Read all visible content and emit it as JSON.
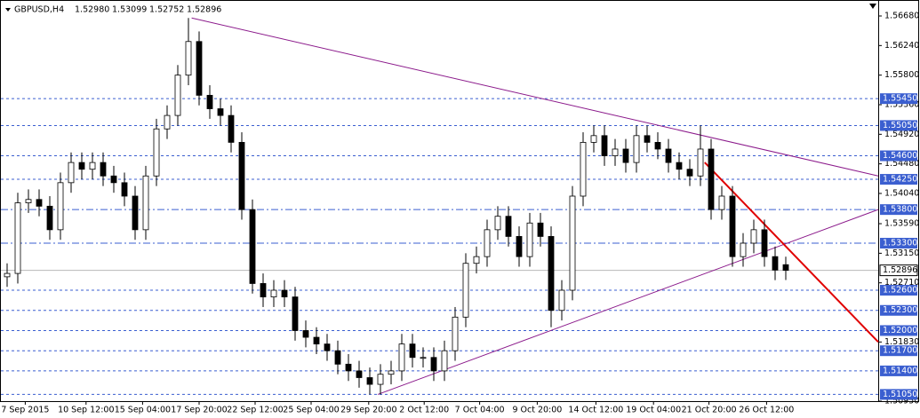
{
  "chart_data": {
    "type": "candlestick",
    "title": "GBPUSD,H4",
    "header_values": [
      "1.52980",
      "1.53099",
      "1.52752",
      "1.52896"
    ],
    "open": [
      1.528,
      1.5285,
      1.539,
      1.5395,
      1.5385,
      1.535,
      1.542,
      1.545,
      1.544,
      1.545,
      1.543,
      1.542,
      1.54,
      1.535,
      1.543,
      1.55,
      1.552,
      1.558,
      1.563,
      1.555,
      1.553,
      1.552,
      1.548,
      1.538,
      1.527,
      1.525,
      1.526,
      1.525,
      1.52,
      1.519,
      1.518,
      1.517,
      1.515,
      1.514,
      1.513,
      1.512,
      1.5135,
      1.514,
      1.518,
      1.516,
      1.516,
      1.514,
      1.517,
      1.522,
      1.53,
      1.531,
      1.535,
      1.537,
      1.534,
      1.531,
      1.536,
      1.534,
      1.523,
      1.526,
      1.54,
      1.548,
      1.549,
      1.546,
      1.547,
      1.545,
      1.549,
      1.548,
      1.547,
      1.545,
      1.544,
      1.543,
      1.547,
      1.538,
      1.54,
      1.531,
      1.533,
      1.535,
      1.531,
      1.5298
    ],
    "high": [
      1.53,
      1.5405,
      1.541,
      1.541,
      1.54,
      1.5435,
      1.5465,
      1.5465,
      1.5465,
      1.5465,
      1.5445,
      1.5435,
      1.5415,
      1.5445,
      1.5515,
      1.5535,
      1.5595,
      1.5665,
      1.5645,
      1.5565,
      1.5545,
      1.5535,
      1.5495,
      1.5395,
      1.5285,
      1.5275,
      1.5275,
      1.5265,
      1.5215,
      1.5205,
      1.5195,
      1.5185,
      1.5165,
      1.5155,
      1.5145,
      1.515,
      1.5155,
      1.5195,
      1.5195,
      1.5175,
      1.5175,
      1.5185,
      1.5235,
      1.5315,
      1.5325,
      1.5365,
      1.5385,
      1.5385,
      1.5355,
      1.5375,
      1.5375,
      1.5355,
      1.5275,
      1.5415,
      1.5495,
      1.5505,
      1.5505,
      1.5485,
      1.5485,
      1.5505,
      1.5505,
      1.5495,
      1.5485,
      1.5465,
      1.5455,
      1.5505,
      1.5485,
      1.5415,
      1.5415,
      1.5345,
      1.5365,
      1.5365,
      1.5325,
      1.53099
    ],
    "low": [
      1.5265,
      1.527,
      1.5375,
      1.537,
      1.5335,
      1.5335,
      1.5405,
      1.5425,
      1.5425,
      1.5415,
      1.5405,
      1.5385,
      1.5335,
      1.5335,
      1.5415,
      1.5485,
      1.5505,
      1.5565,
      1.5535,
      1.5515,
      1.5505,
      1.5465,
      1.5365,
      1.5255,
      1.5235,
      1.5235,
      1.5235,
      1.5185,
      1.5175,
      1.5165,
      1.5155,
      1.5135,
      1.5125,
      1.5115,
      1.5105,
      1.5105,
      1.512,
      1.5125,
      1.5145,
      1.5145,
      1.5125,
      1.5125,
      1.5155,
      1.5205,
      1.5285,
      1.5295,
      1.5335,
      1.5325,
      1.5295,
      1.5295,
      1.5325,
      1.5205,
      1.5215,
      1.5245,
      1.5385,
      1.5465,
      1.5445,
      1.5445,
      1.5435,
      1.5435,
      1.5465,
      1.5455,
      1.5435,
      1.5425,
      1.5415,
      1.5415,
      1.5365,
      1.5365,
      1.5295,
      1.5295,
      1.5315,
      1.5295,
      1.5275,
      1.52752
    ],
    "close": [
      1.5285,
      1.539,
      1.5395,
      1.5385,
      1.535,
      1.542,
      1.545,
      1.544,
      1.545,
      1.543,
      1.542,
      1.54,
      1.535,
      1.543,
      1.55,
      1.552,
      1.558,
      1.563,
      1.555,
      1.553,
      1.552,
      1.548,
      1.538,
      1.527,
      1.525,
      1.526,
      1.525,
      1.52,
      1.519,
      1.518,
      1.517,
      1.515,
      1.514,
      1.513,
      1.512,
      1.5135,
      1.514,
      1.518,
      1.516,
      1.516,
      1.514,
      1.517,
      1.522,
      1.53,
      1.531,
      1.535,
      1.537,
      1.534,
      1.531,
      1.536,
      1.534,
      1.523,
      1.526,
      1.54,
      1.548,
      1.549,
      1.546,
      1.547,
      1.545,
      1.549,
      1.548,
      1.547,
      1.545,
      1.544,
      1.543,
      1.547,
      1.538,
      1.54,
      1.531,
      1.533,
      1.535,
      1.531,
      1.529,
      1.52896
    ],
    "xlim": [
      -0.667,
      81.667
    ],
    "ylim": [
      1.5095,
      1.5668
    ],
    "xticks": [
      {
        "value": 1.7,
        "label": "7 Sep 2015"
      },
      {
        "value": 7.4,
        "label": "10 Sep 12:00"
      },
      {
        "value": 12.7,
        "label": "15 Sep 04:00"
      },
      {
        "value": 18,
        "label": "17 Sep 20:00"
      },
      {
        "value": 23.25,
        "label": "22 Sep 12:00"
      },
      {
        "value": 28.5,
        "label": "25 Sep 04:00"
      },
      {
        "value": 33.9,
        "label": "29 Sep 20:00"
      },
      {
        "value": 39.1,
        "label": "2 Oct 12:00"
      },
      {
        "value": 44.3,
        "label": "7 Oct 04:00"
      },
      {
        "value": 49.7,
        "label": "9 Oct 20:00"
      },
      {
        "value": 55.2,
        "label": "14 Oct 12:00"
      },
      {
        "value": 60.6,
        "label": "19 Oct 04:00"
      },
      {
        "value": 65.8,
        "label": "21 Oct 20:00"
      },
      {
        "value": 71.2,
        "label": "26 Oct 12:00"
      }
    ],
    "yticks": [
      {
        "value": 1.5668,
        "label": "1.56680"
      },
      {
        "value": 1.5624,
        "label": "1.56240"
      },
      {
        "value": 1.558,
        "label": "1.55800"
      },
      {
        "value": 1.5536,
        "label": "1.55360"
      },
      {
        "value": 1.5492,
        "label": "1.54920"
      },
      {
        "value": 1.5448,
        "label": "1.54480"
      },
      {
        "value": 1.5404,
        "label": "1.54040"
      },
      {
        "value": 1.5359,
        "label": "1.53590"
      },
      {
        "value": 1.5315,
        "label": "1.53150"
      },
      {
        "value": 1.5271,
        "label": "1.52710"
      },
      {
        "value": 1.5183,
        "label": "1.51830"
      },
      {
        "value": 1.5095,
        "label": "1.50950"
      }
    ],
    "levels": [
      {
        "value": 1.5545,
        "label": "1.55450",
        "style": "dash"
      },
      {
        "value": 1.5505,
        "label": "1.55050",
        "style": "dash"
      },
      {
        "value": 1.546,
        "label": "1.54600",
        "style": "dash"
      },
      {
        "value": 1.5425,
        "label": "1.54250",
        "style": "dash"
      },
      {
        "value": 1.538,
        "label": "1.53800",
        "style": "dashdot"
      },
      {
        "value": 1.533,
        "label": "1.53300",
        "style": "dashdot"
      },
      {
        "value": 1.526,
        "label": "1.52600",
        "style": "dash"
      },
      {
        "value": 1.523,
        "label": "1.52300",
        "style": "dash"
      },
      {
        "value": 1.52,
        "label": "1.52000",
        "style": "dash"
      },
      {
        "value": 1.517,
        "label": "1.51700",
        "style": "dash"
      },
      {
        "value": 1.514,
        "label": "1.51400",
        "style": "dash"
      },
      {
        "value": 1.5105,
        "label": "1.51050",
        "style": "dash"
      }
    ],
    "level_color": "#3b5fd0",
    "current_price": {
      "value": 1.52896,
      "label": "1.52896"
    },
    "trendlines": [
      {
        "color": "#8b1a8b",
        "x": [
          17.3,
          81.67
        ],
        "y": [
          1.5665,
          1.543
        ]
      },
      {
        "color": "#8b1a8b",
        "x": [
          34.75,
          81.67
        ],
        "y": [
          1.5105,
          1.538
        ]
      },
      {
        "color": "#e00000",
        "x": [
          65.4,
          81.67
        ],
        "y": [
          1.545,
          1.5183
        ]
      }
    ]
  }
}
